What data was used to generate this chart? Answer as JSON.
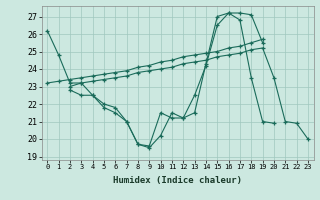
{
  "xlabel": "Humidex (Indice chaleur)",
  "bg_color": "#cce8e0",
  "grid_color": "#a0c8be",
  "line_color": "#1a6b5a",
  "xlim": [
    -0.5,
    23.5
  ],
  "ylim": [
    18.8,
    27.6
  ],
  "yticks": [
    19,
    20,
    21,
    22,
    23,
    24,
    25,
    26,
    27
  ],
  "xticks": [
    0,
    1,
    2,
    3,
    4,
    5,
    6,
    7,
    8,
    9,
    10,
    11,
    12,
    13,
    14,
    15,
    16,
    17,
    18,
    19,
    20,
    21,
    22,
    23
  ],
  "series": [
    {
      "x": [
        0,
        1,
        2,
        3,
        4,
        5,
        6,
        7,
        8,
        9,
        10,
        11,
        12,
        13,
        14,
        15,
        16,
        17,
        18,
        19
      ],
      "y": [
        26.2,
        24.8,
        23.2,
        23.2,
        22.5,
        21.8,
        21.5,
        21.0,
        19.7,
        19.5,
        20.2,
        21.5,
        21.2,
        22.5,
        24.2,
        26.5,
        27.2,
        27.2,
        27.1,
        25.5
      ]
    },
    {
      "x": [
        0,
        1,
        2,
        3,
        4,
        5,
        6,
        7,
        8,
        9,
        10,
        11,
        12,
        13,
        14,
        15,
        16,
        17,
        18,
        19,
        20,
        21,
        22,
        23
      ],
      "y": [
        23.2,
        23.3,
        23.4,
        23.5,
        23.6,
        23.7,
        23.8,
        23.9,
        24.1,
        24.2,
        24.4,
        24.5,
        24.7,
        24.8,
        24.9,
        25.0,
        25.2,
        25.3,
        25.5,
        25.7,
        null,
        null,
        null,
        null
      ]
    },
    {
      "x": [
        2,
        3,
        4,
        5,
        6,
        7,
        8,
        9,
        10,
        11,
        12,
        13,
        14,
        15,
        16,
        17,
        18,
        19,
        20,
        21,
        22,
        23
      ],
      "y": [
        22.8,
        22.5,
        22.5,
        22.0,
        21.8,
        21.0,
        19.7,
        19.6,
        21.5,
        21.2,
        21.2,
        21.5,
        24.3,
        27.0,
        27.2,
        26.8,
        23.5,
        21.0,
        20.9,
        null,
        null,
        null
      ]
    },
    {
      "x": [
        2,
        3,
        4,
        5,
        6,
        7,
        8,
        9,
        10,
        11,
        12,
        13,
        14,
        15,
        16,
        17,
        18,
        19,
        20,
        21,
        22,
        23
      ],
      "y": [
        23.0,
        23.2,
        23.3,
        23.4,
        23.5,
        23.6,
        23.8,
        23.9,
        24.0,
        24.1,
        24.3,
        24.4,
        24.5,
        24.7,
        24.8,
        24.9,
        25.1,
        25.2,
        23.5,
        21.0,
        20.9,
        20.0
      ]
    }
  ]
}
